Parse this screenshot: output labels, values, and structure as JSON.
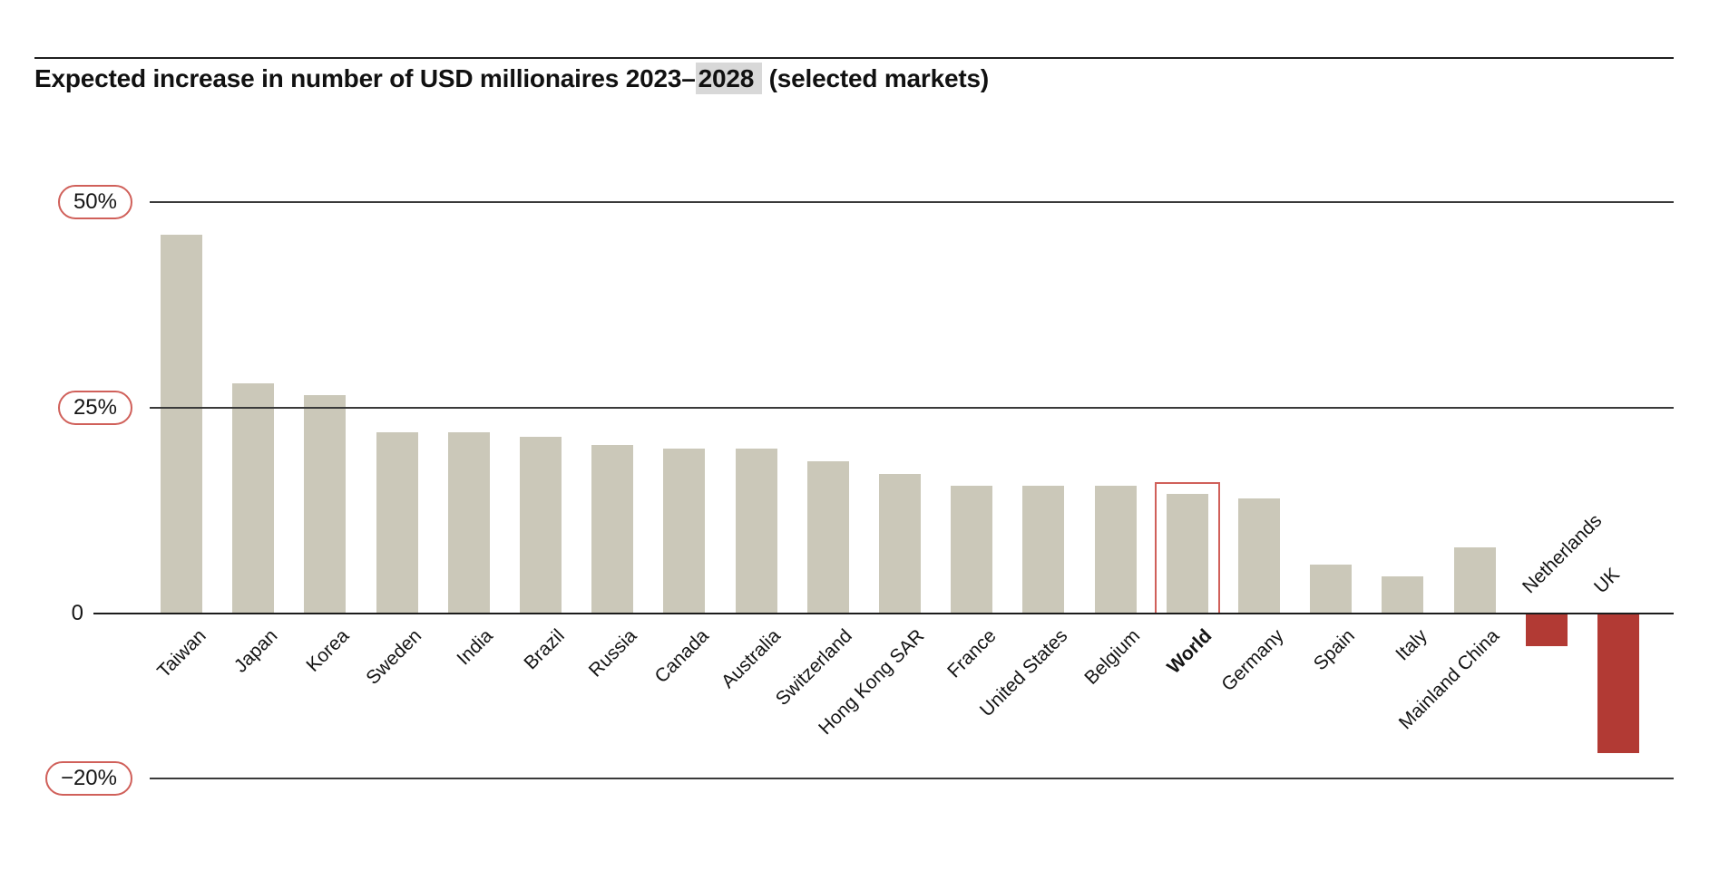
{
  "header": {
    "title_prefix": "Expected increase in number of USD millionaires 2023–",
    "title_highlight": "2028",
    "title_suffix": " (selected markets)"
  },
  "chart_data": {
    "type": "bar",
    "title": "Expected increase in number of USD millionaires 2023–2028 (selected markets)",
    "unit": "%",
    "categories": [
      "Taiwan",
      "Japan",
      "Korea",
      "Sweden",
      "India",
      "Brazil",
      "Russia",
      "Canada",
      "Australia",
      "Switzerland",
      "Hong Kong SAR",
      "France",
      "United States",
      "Belgium",
      "World",
      "Germany",
      "Spain",
      "Italy",
      "Mainland China",
      "Netherlands",
      "UK"
    ],
    "values": [
      46,
      28,
      26.5,
      22,
      22,
      21.5,
      20.5,
      20,
      20,
      18.5,
      17,
      15.5,
      15.5,
      15.5,
      14.5,
      14,
      6,
      4.5,
      8,
      -4,
      -17
    ],
    "highlighted_category": "World",
    "y_ticks": [
      {
        "label": "50%",
        "value": 50,
        "pill": true
      },
      {
        "label": "25%",
        "value": 25,
        "pill": true
      },
      {
        "label": "0",
        "value": 0,
        "pill": false
      },
      {
        "label": "−20%",
        "value": -20,
        "pill": true
      }
    ],
    "ylim": [
      -20,
      50
    ],
    "grid": true,
    "legend": false,
    "colors": {
      "bar_positive": "#cbc8b9",
      "bar_negative": "#b23a34",
      "accent_outline": "#d0605a",
      "gridline": "#3a3a3a",
      "title_highlight_bg": "#d8d8d8",
      "text": "#141414"
    }
  }
}
